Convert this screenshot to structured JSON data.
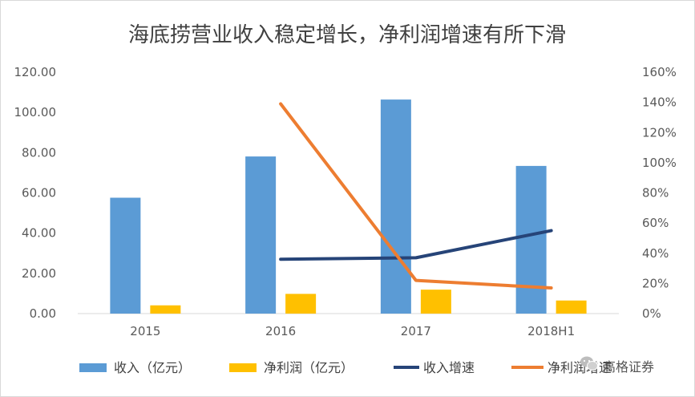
{
  "chart_data": {
    "type": "bar",
    "title": "海底捞营业收入稳定增长，净利润增速有所下滑",
    "categories": [
      "2015",
      "2016",
      "2017",
      "2018H1"
    ],
    "y_left": {
      "min": 0,
      "max": 120,
      "ticks": [
        "0.00",
        "20.00",
        "40.00",
        "60.00",
        "80.00",
        "100.00",
        "120.00"
      ]
    },
    "y_right": {
      "min": 0,
      "max": 160,
      "ticks": [
        "0%",
        "20%",
        "40%",
        "60%",
        "80%",
        "100%",
        "120%",
        "140%",
        "160%"
      ]
    },
    "series": [
      {
        "name": "收入（亿元）",
        "kind": "bar",
        "axis": "left",
        "color": "#5B9BD5",
        "values": [
          57.6,
          78.1,
          106.4,
          73.4
        ]
      },
      {
        "name": "净利润（亿元）",
        "kind": "bar",
        "axis": "left",
        "color": "#FFC000",
        "values": [
          4.1,
          9.8,
          11.9,
          6.5
        ]
      },
      {
        "name": "收入增速",
        "kind": "line",
        "axis": "right",
        "color": "#264478",
        "values": [
          null,
          36,
          37,
          55
        ]
      },
      {
        "name": "净利润增速",
        "kind": "line",
        "axis": "right",
        "color": "#ED7D31",
        "values": [
          null,
          139,
          22,
          17
        ]
      }
    ],
    "grid": false,
    "legend_position": "bottom"
  },
  "legend": [
    {
      "label": "收入（亿元）",
      "color": "#5B9BD5",
      "kind": "bar"
    },
    {
      "label": "净利润（亿元）",
      "color": "#FFC000",
      "kind": "bar"
    },
    {
      "label": "收入增速",
      "color": "#264478",
      "kind": "line"
    },
    {
      "label": "净利润增速",
      "color": "#ED7D31",
      "kind": "line"
    }
  ],
  "watermark": {
    "text": "高格证券",
    "icon": "wechat-icon"
  }
}
